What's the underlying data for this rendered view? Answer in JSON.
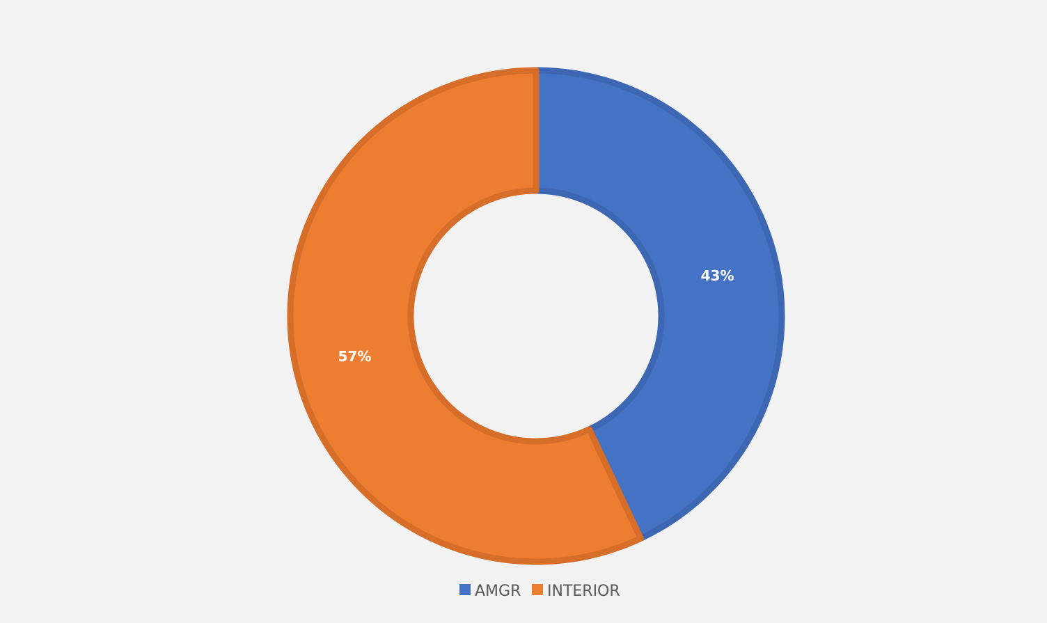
{
  "chart_data": {
    "type": "pie",
    "variant": "donut",
    "title": "",
    "categories": [
      "AMGR",
      "INTERIOR"
    ],
    "values": [
      43,
      57
    ],
    "data_labels": [
      "43%",
      "57%"
    ],
    "colors": [
      "#4472C4",
      "#ED7D31"
    ],
    "legend": {
      "placement": "bottom",
      "entries": [
        "AMGR",
        "INTERIOR"
      ]
    }
  }
}
